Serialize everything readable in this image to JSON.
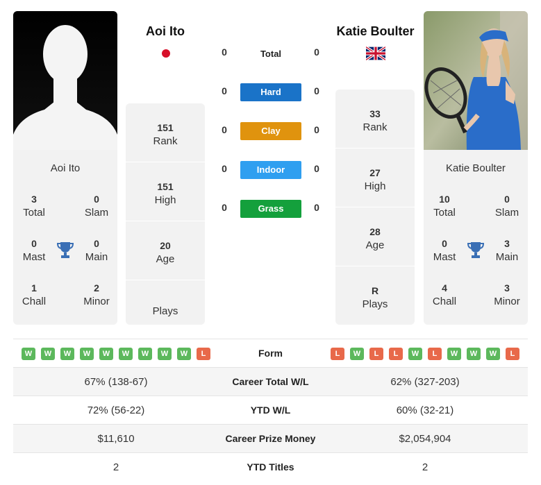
{
  "left_player": {
    "name": "Aoi Ito",
    "flag": "japan-flag",
    "titles": {
      "total": "3",
      "total_label": "Total",
      "slam": "0",
      "slam_label": "Slam",
      "mast": "0",
      "mast_label": "Mast",
      "main": "0",
      "main_label": "Main",
      "chall": "1",
      "chall_label": "Chall",
      "minor": "2",
      "minor_label": "Minor"
    },
    "rank": {
      "value": "151",
      "label": "Rank"
    },
    "high": {
      "value": "151",
      "label": "High"
    },
    "age": {
      "value": "20",
      "label": "Age"
    },
    "plays": {
      "value": "",
      "label": "Plays"
    }
  },
  "right_player": {
    "name": "Katie Boulter",
    "flag": "uk-flag",
    "titles": {
      "total": "10",
      "total_label": "Total",
      "slam": "0",
      "slam_label": "Slam",
      "mast": "0",
      "mast_label": "Mast",
      "main": "3",
      "main_label": "Main",
      "chall": "4",
      "chall_label": "Chall",
      "minor": "3",
      "minor_label": "Minor"
    },
    "rank": {
      "value": "33",
      "label": "Rank"
    },
    "high": {
      "value": "27",
      "label": "High"
    },
    "age": {
      "value": "28",
      "label": "Age"
    },
    "plays": {
      "value": "R",
      "label": "Plays"
    }
  },
  "h2h": {
    "total": {
      "label": "Total",
      "left": "0",
      "right": "0"
    },
    "hard": {
      "label": "Hard",
      "left": "0",
      "right": "0",
      "color": "#1a73c8"
    },
    "clay": {
      "label": "Clay",
      "left": "0",
      "right": "0",
      "color": "#e0930e"
    },
    "indoor": {
      "label": "Indoor",
      "left": "0",
      "right": "0",
      "color": "#2f9ff0"
    },
    "grass": {
      "label": "Grass",
      "left": "0",
      "right": "0",
      "color": "#14a03c"
    }
  },
  "comparison": {
    "form": {
      "label": "Form",
      "left": [
        "W",
        "W",
        "W",
        "W",
        "W",
        "W",
        "W",
        "W",
        "W",
        "L"
      ],
      "right": [
        "L",
        "W",
        "L",
        "L",
        "W",
        "L",
        "W",
        "W",
        "W",
        "L"
      ]
    },
    "career_wl": {
      "label": "Career Total W/L",
      "left": "67% (138-67)",
      "right": "62% (327-203)"
    },
    "ytd_wl": {
      "label": "YTD W/L",
      "left": "72% (56-22)",
      "right": "60% (32-21)"
    },
    "prize": {
      "label": "Career Prize Money",
      "left": "$11,610",
      "right": "$2,054,904"
    },
    "ytd_titles": {
      "label": "YTD Titles",
      "left": "2",
      "right": "2"
    }
  },
  "colors": {
    "win": "#5cb85c",
    "loss": "#e8694a",
    "trophy": "#3a6fb5"
  }
}
